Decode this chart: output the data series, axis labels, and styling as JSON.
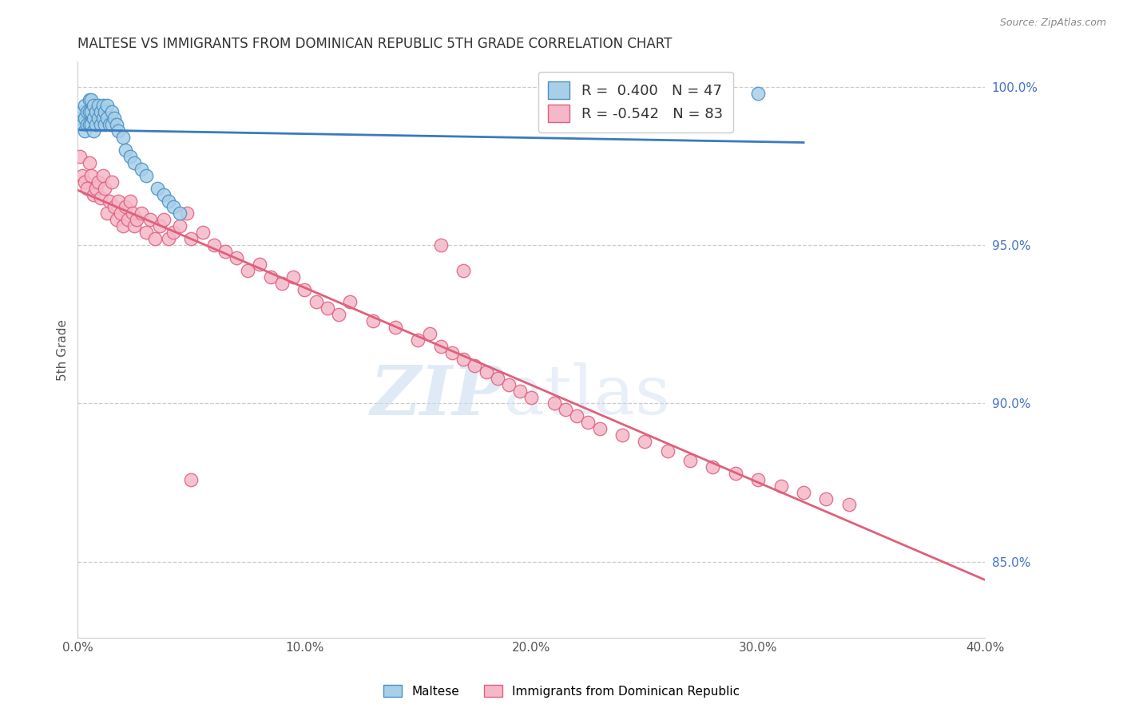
{
  "title": "MALTESE VS IMMIGRANTS FROM DOMINICAN REPUBLIC 5TH GRADE CORRELATION CHART",
  "source": "Source: ZipAtlas.com",
  "ylabel": "5th Grade",
  "xlim": [
    0.0,
    0.4
  ],
  "ylim": [
    0.826,
    1.008
  ],
  "xticks": [
    0.0,
    0.05,
    0.1,
    0.15,
    0.2,
    0.25,
    0.3,
    0.35,
    0.4
  ],
  "yticks_right": [
    0.85,
    0.9,
    0.95,
    1.0
  ],
  "ytick_labels_right": [
    "85.0%",
    "90.0%",
    "95.0%",
    "100.0%"
  ],
  "blue_R": 0.4,
  "blue_N": 47,
  "pink_R": -0.542,
  "pink_N": 83,
  "blue_color": "#a8cfe8",
  "pink_color": "#f4b8c8",
  "blue_edge_color": "#4a90c4",
  "pink_edge_color": "#e06080",
  "blue_line_color": "#3a7abf",
  "pink_line_color": "#e0607a",
  "legend_label_blue": "Maltese",
  "legend_label_pink": "Immigrants from Dominican Republic",
  "blue_scatter_x": [
    0.001,
    0.002,
    0.002,
    0.003,
    0.003,
    0.003,
    0.004,
    0.004,
    0.005,
    0.005,
    0.005,
    0.006,
    0.006,
    0.006,
    0.007,
    0.007,
    0.007,
    0.008,
    0.008,
    0.009,
    0.009,
    0.01,
    0.01,
    0.011,
    0.011,
    0.012,
    0.012,
    0.013,
    0.013,
    0.014,
    0.015,
    0.015,
    0.016,
    0.017,
    0.018,
    0.02,
    0.021,
    0.023,
    0.025,
    0.028,
    0.03,
    0.035,
    0.038,
    0.04,
    0.042,
    0.045,
    0.3
  ],
  "blue_scatter_y": [
    0.99,
    0.992,
    0.988,
    0.994,
    0.99,
    0.986,
    0.992,
    0.988,
    0.996,
    0.992,
    0.988,
    0.996,
    0.992,
    0.988,
    0.994,
    0.99,
    0.986,
    0.992,
    0.988,
    0.994,
    0.99,
    0.992,
    0.988,
    0.994,
    0.99,
    0.992,
    0.988,
    0.994,
    0.99,
    0.988,
    0.992,
    0.988,
    0.99,
    0.988,
    0.986,
    0.984,
    0.98,
    0.978,
    0.976,
    0.974,
    0.972,
    0.968,
    0.966,
    0.964,
    0.962,
    0.96,
    0.998
  ],
  "pink_scatter_x": [
    0.001,
    0.002,
    0.003,
    0.004,
    0.005,
    0.006,
    0.007,
    0.008,
    0.009,
    0.01,
    0.011,
    0.012,
    0.013,
    0.014,
    0.015,
    0.016,
    0.017,
    0.018,
    0.019,
    0.02,
    0.021,
    0.022,
    0.023,
    0.024,
    0.025,
    0.026,
    0.028,
    0.03,
    0.032,
    0.034,
    0.036,
    0.038,
    0.04,
    0.042,
    0.045,
    0.048,
    0.05,
    0.055,
    0.06,
    0.065,
    0.07,
    0.075,
    0.08,
    0.085,
    0.09,
    0.095,
    0.1,
    0.105,
    0.11,
    0.115,
    0.12,
    0.13,
    0.14,
    0.15,
    0.155,
    0.16,
    0.165,
    0.17,
    0.175,
    0.18,
    0.185,
    0.19,
    0.195,
    0.2,
    0.21,
    0.215,
    0.22,
    0.225,
    0.23,
    0.24,
    0.25,
    0.26,
    0.27,
    0.28,
    0.29,
    0.3,
    0.31,
    0.32,
    0.33,
    0.34,
    0.16,
    0.17,
    0.05
  ],
  "pink_scatter_y": [
    0.978,
    0.972,
    0.97,
    0.968,
    0.976,
    0.972,
    0.966,
    0.968,
    0.97,
    0.965,
    0.972,
    0.968,
    0.96,
    0.964,
    0.97,
    0.962,
    0.958,
    0.964,
    0.96,
    0.956,
    0.962,
    0.958,
    0.964,
    0.96,
    0.956,
    0.958,
    0.96,
    0.954,
    0.958,
    0.952,
    0.956,
    0.958,
    0.952,
    0.954,
    0.956,
    0.96,
    0.952,
    0.954,
    0.95,
    0.948,
    0.946,
    0.942,
    0.944,
    0.94,
    0.938,
    0.94,
    0.936,
    0.932,
    0.93,
    0.928,
    0.932,
    0.926,
    0.924,
    0.92,
    0.922,
    0.918,
    0.916,
    0.914,
    0.912,
    0.91,
    0.908,
    0.906,
    0.904,
    0.902,
    0.9,
    0.898,
    0.896,
    0.894,
    0.892,
    0.89,
    0.888,
    0.885,
    0.882,
    0.88,
    0.878,
    0.876,
    0.874,
    0.872,
    0.87,
    0.868,
    0.95,
    0.942,
    0.876
  ],
  "watermark_zip": "ZIP",
  "watermark_atlas": "atlas",
  "background_color": "#ffffff",
  "grid_color": "#cccccc"
}
